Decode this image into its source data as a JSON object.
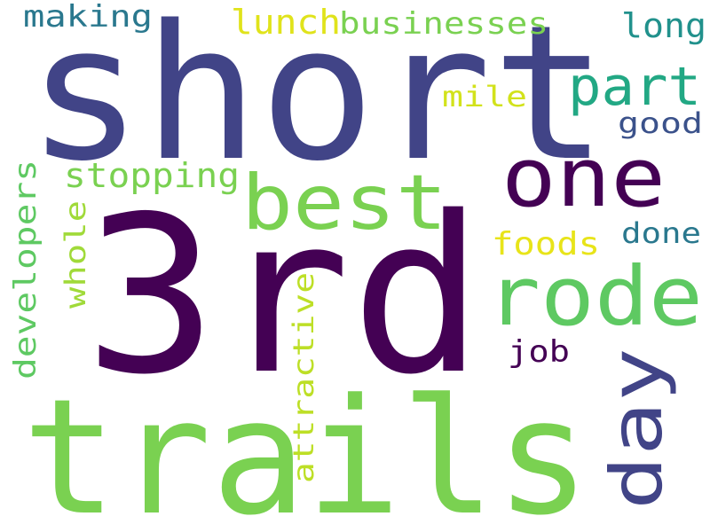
{
  "words": [
    {
      "id": "3rd",
      "text": "3rd",
      "color": "#440154"
    },
    {
      "id": "short",
      "text": "short",
      "color": "#414487"
    },
    {
      "id": "trails",
      "text": "trails",
      "color": "#7ad151"
    },
    {
      "id": "one",
      "text": "one",
      "color": "#440154"
    },
    {
      "id": "best",
      "text": "best",
      "color": "#7ad151"
    },
    {
      "id": "rode",
      "text": "rode",
      "color": "#5ec962"
    },
    {
      "id": "day",
      "text": "day",
      "color": "#414487"
    },
    {
      "id": "part",
      "text": "part",
      "color": "#22a884"
    },
    {
      "id": "developers",
      "text": "developers",
      "color": "#5ec962"
    },
    {
      "id": "attractive",
      "text": "attractive",
      "color": "#bddf26"
    },
    {
      "id": "stopping",
      "text": "stopping",
      "color": "#7ad151"
    },
    {
      "id": "businesses",
      "text": "businesses",
      "color": "#7ad151"
    },
    {
      "id": "making",
      "text": "making",
      "color": "#2a788e"
    },
    {
      "id": "lunch",
      "text": "lunch",
      "color": "#e0e31b"
    },
    {
      "id": "long",
      "text": "long",
      "color": "#21918c"
    },
    {
      "id": "whole",
      "text": "whole",
      "color": "#a0da39"
    },
    {
      "id": "foods",
      "text": "foods",
      "color": "#e8e419"
    },
    {
      "id": "done",
      "text": "done",
      "color": "#2a788e"
    },
    {
      "id": "good",
      "text": "good",
      "color": "#3b528b"
    },
    {
      "id": "mile",
      "text": "mile",
      "color": "#d2e21b"
    },
    {
      "id": "job",
      "text": "job",
      "color": "#440154"
    }
  ]
}
